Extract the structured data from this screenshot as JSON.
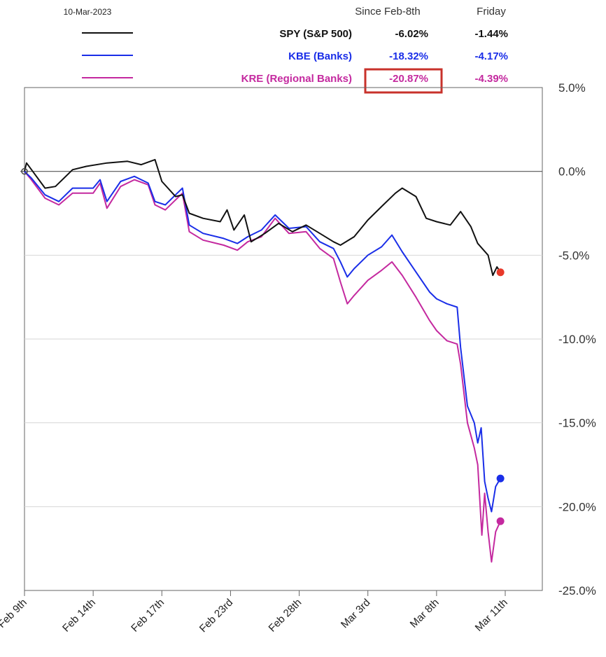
{
  "chart_data": {
    "type": "line",
    "date_label": "10-Mar-2023",
    "columns": {
      "since": "Since Feb-8th",
      "friday": "Friday"
    },
    "categories": [
      "Feb 9th",
      "Feb 14th",
      "Feb 17th",
      "Feb 23rd",
      "Feb 28th",
      "Mar 3rd",
      "Mar 8th",
      "Mar 11th"
    ],
    "ylim": [
      -25,
      5
    ],
    "yticks": [
      5,
      0,
      -5,
      -10,
      -15,
      -20,
      -25
    ],
    "ytick_labels": [
      "5.0%",
      "0.0%",
      "-5.0%",
      "-10.0%",
      "-15.0%",
      "-20.0%",
      "-25.0%"
    ],
    "grid": true,
    "series": [
      {
        "name": "SPY (S&P 500)",
        "since": "-6.02%",
        "friday": "-1.44%",
        "color": "#111111",
        "label_color": "#111111",
        "end_marker_color": "#e8392a",
        "points": [
          [
            0,
            0
          ],
          [
            0.03,
            0.5
          ],
          [
            0.12,
            0
          ],
          [
            0.3,
            -1.0
          ],
          [
            0.45,
            -0.9
          ],
          [
            0.7,
            0.1
          ],
          [
            0.9,
            0.3
          ],
          [
            1.2,
            0.5
          ],
          [
            1.5,
            0.6
          ],
          [
            1.7,
            0.4
          ],
          [
            1.9,
            0.7
          ],
          [
            2.0,
            -0.6
          ],
          [
            2.2,
            -1.5
          ],
          [
            2.3,
            -1.4
          ],
          [
            2.4,
            -2.5
          ],
          [
            2.6,
            -2.8
          ],
          [
            2.85,
            -3.0
          ],
          [
            2.95,
            -2.3
          ],
          [
            3.05,
            -3.5
          ],
          [
            3.2,
            -2.6
          ],
          [
            3.3,
            -4.2
          ],
          [
            3.5,
            -3.7
          ],
          [
            3.7,
            -3.1
          ],
          [
            3.9,
            -3.6
          ],
          [
            4.1,
            -3.2
          ],
          [
            4.3,
            -3.7
          ],
          [
            4.5,
            -4.2
          ],
          [
            4.6,
            -4.4
          ],
          [
            4.8,
            -3.9
          ],
          [
            5.0,
            -2.9
          ],
          [
            5.2,
            -2.1
          ],
          [
            5.4,
            -1.3
          ],
          [
            5.5,
            -1.0
          ],
          [
            5.7,
            -1.5
          ],
          [
            5.85,
            -2.8
          ],
          [
            6.0,
            -3.0
          ],
          [
            6.2,
            -3.2
          ],
          [
            6.35,
            -2.4
          ],
          [
            6.5,
            -3.3
          ],
          [
            6.6,
            -4.3
          ],
          [
            6.75,
            -5.0
          ],
          [
            6.82,
            -6.2
          ],
          [
            6.88,
            -5.7
          ],
          [
            6.93,
            -6.02
          ]
        ]
      },
      {
        "name": "KBE (Banks)",
        "since": "-18.32%",
        "friday": "-4.17%",
        "color": "#1a2ee8",
        "label_color": "#1a2ee8",
        "end_marker_color": "#1a2ee8",
        "points": [
          [
            0,
            0
          ],
          [
            0.1,
            -0.4
          ],
          [
            0.3,
            -1.4
          ],
          [
            0.5,
            -1.8
          ],
          [
            0.7,
            -1.0
          ],
          [
            1.0,
            -1.0
          ],
          [
            1.1,
            -0.5
          ],
          [
            1.2,
            -1.8
          ],
          [
            1.4,
            -0.6
          ],
          [
            1.6,
            -0.3
          ],
          [
            1.8,
            -0.7
          ],
          [
            1.9,
            -1.8
          ],
          [
            2.05,
            -2.0
          ],
          [
            2.3,
            -1.0
          ],
          [
            2.4,
            -3.2
          ],
          [
            2.6,
            -3.7
          ],
          [
            2.9,
            -4.0
          ],
          [
            3.1,
            -4.3
          ],
          [
            3.25,
            -3.9
          ],
          [
            3.45,
            -3.5
          ],
          [
            3.65,
            -2.6
          ],
          [
            3.85,
            -3.4
          ],
          [
            4.1,
            -3.3
          ],
          [
            4.3,
            -4.2
          ],
          [
            4.5,
            -4.6
          ],
          [
            4.6,
            -5.4
          ],
          [
            4.7,
            -6.3
          ],
          [
            4.8,
            -5.8
          ],
          [
            5.0,
            -5.0
          ],
          [
            5.2,
            -4.5
          ],
          [
            5.35,
            -3.8
          ],
          [
            5.5,
            -4.8
          ],
          [
            5.7,
            -6.0
          ],
          [
            5.9,
            -7.2
          ],
          [
            6.0,
            -7.6
          ],
          [
            6.15,
            -7.9
          ],
          [
            6.3,
            -8.1
          ],
          [
            6.35,
            -10.5
          ],
          [
            6.45,
            -14.0
          ],
          [
            6.55,
            -15.0
          ],
          [
            6.6,
            -16.2
          ],
          [
            6.65,
            -15.3
          ],
          [
            6.7,
            -18.5
          ],
          [
            6.75,
            -19.5
          ],
          [
            6.8,
            -20.3
          ],
          [
            6.86,
            -18.8
          ],
          [
            6.93,
            -18.32
          ]
        ]
      },
      {
        "name": "KRE (Regional Banks)",
        "since": "-20.87%",
        "friday": "-4.39%",
        "color": "#c4299f",
        "label_color": "#c4299f",
        "end_marker_color": "#c4299f",
        "highlight_since": true,
        "points": [
          [
            0,
            0
          ],
          [
            0.1,
            -0.5
          ],
          [
            0.3,
            -1.6
          ],
          [
            0.5,
            -2.0
          ],
          [
            0.7,
            -1.3
          ],
          [
            1.0,
            -1.3
          ],
          [
            1.1,
            -0.7
          ],
          [
            1.2,
            -2.2
          ],
          [
            1.4,
            -0.9
          ],
          [
            1.6,
            -0.5
          ],
          [
            1.8,
            -0.8
          ],
          [
            1.9,
            -2.0
          ],
          [
            2.05,
            -2.3
          ],
          [
            2.3,
            -1.3
          ],
          [
            2.4,
            -3.6
          ],
          [
            2.6,
            -4.1
          ],
          [
            2.9,
            -4.4
          ],
          [
            3.1,
            -4.7
          ],
          [
            3.25,
            -4.2
          ],
          [
            3.45,
            -3.9
          ],
          [
            3.65,
            -2.8
          ],
          [
            3.85,
            -3.7
          ],
          [
            4.1,
            -3.6
          ],
          [
            4.3,
            -4.6
          ],
          [
            4.5,
            -5.2
          ],
          [
            4.6,
            -6.6
          ],
          [
            4.7,
            -7.9
          ],
          [
            4.8,
            -7.4
          ],
          [
            5.0,
            -6.5
          ],
          [
            5.2,
            -5.9
          ],
          [
            5.35,
            -5.4
          ],
          [
            5.5,
            -6.2
          ],
          [
            5.7,
            -7.5
          ],
          [
            5.9,
            -8.9
          ],
          [
            6.0,
            -9.5
          ],
          [
            6.15,
            -10.1
          ],
          [
            6.3,
            -10.3
          ],
          [
            6.35,
            -11.5
          ],
          [
            6.45,
            -15.0
          ],
          [
            6.55,
            -16.5
          ],
          [
            6.6,
            -17.5
          ],
          [
            6.66,
            -21.7
          ],
          [
            6.7,
            -19.2
          ],
          [
            6.75,
            -21.5
          ],
          [
            6.8,
            -23.3
          ],
          [
            6.86,
            -21.5
          ],
          [
            6.93,
            -20.87
          ]
        ]
      }
    ]
  }
}
